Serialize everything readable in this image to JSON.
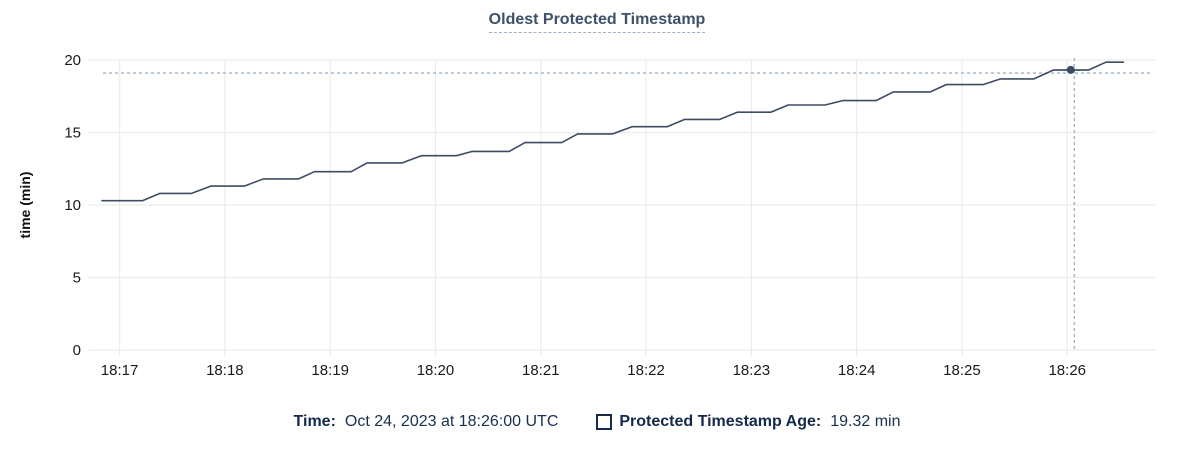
{
  "title": "Oldest Protected Timestamp",
  "colors": {
    "line": "#3d4c63",
    "grid": "#ececec",
    "axis_text": "#1a1a1a",
    "crosshair": "#a0b4c2",
    "title_text": "#3f5168",
    "legend_text": "#15294a"
  },
  "chart_data": {
    "type": "line",
    "title": "Oldest Protected Timestamp",
    "xlabel": "",
    "ylabel": "time (min)",
    "ylim": [
      0,
      20
    ],
    "y_ticks": [
      0,
      5,
      10,
      15,
      20
    ],
    "x_ticks": [
      "18:17",
      "18:18",
      "18:19",
      "18:20",
      "18:21",
      "18:22",
      "18:23",
      "18:24",
      "18:25",
      "18:26"
    ],
    "x_range": [
      "18:16:46",
      "18:26:50"
    ],
    "grid": true,
    "legend_position": "bottom",
    "series": [
      {
        "name": "Protected Timestamp Age",
        "points": [
          {
            "t": "18:16:50",
            "v": 10.3
          },
          {
            "t": "18:17:13",
            "v": 10.3
          },
          {
            "t": "18:17:23",
            "v": 10.8
          },
          {
            "t": "18:17:41",
            "v": 10.8
          },
          {
            "t": "18:17:52",
            "v": 11.3
          },
          {
            "t": "18:18:11",
            "v": 11.3
          },
          {
            "t": "18:18:22",
            "v": 11.8
          },
          {
            "t": "18:18:42",
            "v": 11.8
          },
          {
            "t": "18:18:51",
            "v": 12.3
          },
          {
            "t": "18:19:12",
            "v": 12.3
          },
          {
            "t": "18:19:21",
            "v": 12.9
          },
          {
            "t": "18:19:41",
            "v": 12.9
          },
          {
            "t": "18:19:52",
            "v": 13.4
          },
          {
            "t": "18:20:12",
            "v": 13.4
          },
          {
            "t": "18:20:21",
            "v": 13.7
          },
          {
            "t": "18:20:42",
            "v": 13.7
          },
          {
            "t": "18:20:51",
            "v": 14.3
          },
          {
            "t": "18:21:12",
            "v": 14.3
          },
          {
            "t": "18:21:21",
            "v": 14.9
          },
          {
            "t": "18:21:41",
            "v": 14.9
          },
          {
            "t": "18:21:52",
            "v": 15.4
          },
          {
            "t": "18:22:12",
            "v": 15.4
          },
          {
            "t": "18:22:22",
            "v": 15.9
          },
          {
            "t": "18:22:42",
            "v": 15.9
          },
          {
            "t": "18:22:52",
            "v": 16.4
          },
          {
            "t": "18:23:11",
            "v": 16.4
          },
          {
            "t": "18:23:21",
            "v": 16.9
          },
          {
            "t": "18:23:42",
            "v": 16.9
          },
          {
            "t": "18:23:52",
            "v": 17.2
          },
          {
            "t": "18:24:11",
            "v": 17.2
          },
          {
            "t": "18:24:21",
            "v": 17.8
          },
          {
            "t": "18:24:42",
            "v": 17.8
          },
          {
            "t": "18:24:51",
            "v": 18.3
          },
          {
            "t": "18:25:12",
            "v": 18.3
          },
          {
            "t": "18:25:22",
            "v": 18.7
          },
          {
            "t": "18:25:41",
            "v": 18.7
          },
          {
            "t": "18:25:52",
            "v": 19.3
          },
          {
            "t": "18:26:02",
            "v": 19.32
          },
          {
            "t": "18:26:12",
            "v": 19.3
          },
          {
            "t": "18:26:22",
            "v": 19.85
          },
          {
            "t": "18:26:32",
            "v": 19.85
          }
        ]
      }
    ],
    "highlight_point": {
      "t": "18:26:02",
      "v": 19.32
    },
    "crosshair": {
      "t": "18:26:04",
      "v": 19.1
    }
  },
  "tooltip": {
    "time_label": "Time:",
    "time_value": "Oct 24, 2023 at 18:26:00 UTC",
    "age_label": "Protected Timestamp Age:",
    "age_value": "19.32 min"
  }
}
